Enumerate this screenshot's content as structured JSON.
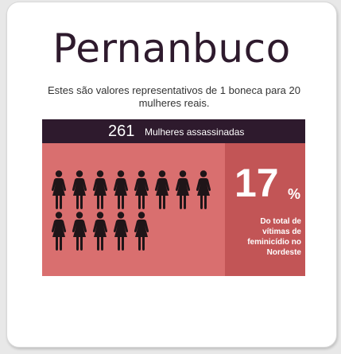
{
  "title": "Pernanbuco",
  "subtitle": "Estes são valores representativos de 1 boneca para 20 mulheres reais.",
  "infographic": {
    "count_value": "261",
    "count_label": "Mulheres assassinadas",
    "figures_row1": 8,
    "figures_row2": 5,
    "figure_icon": "woman-figure-icon",
    "stat_value": "17",
    "stat_unit": "%",
    "stat_label": "Do total de vítimas de feminicídio no Nordeste"
  },
  "colors": {
    "title": "#2e1a2d",
    "bar": "#2e1a2d",
    "figures_panel": "#d96f6f",
    "stat_panel": "#c25556",
    "figure": "#1f1518"
  }
}
